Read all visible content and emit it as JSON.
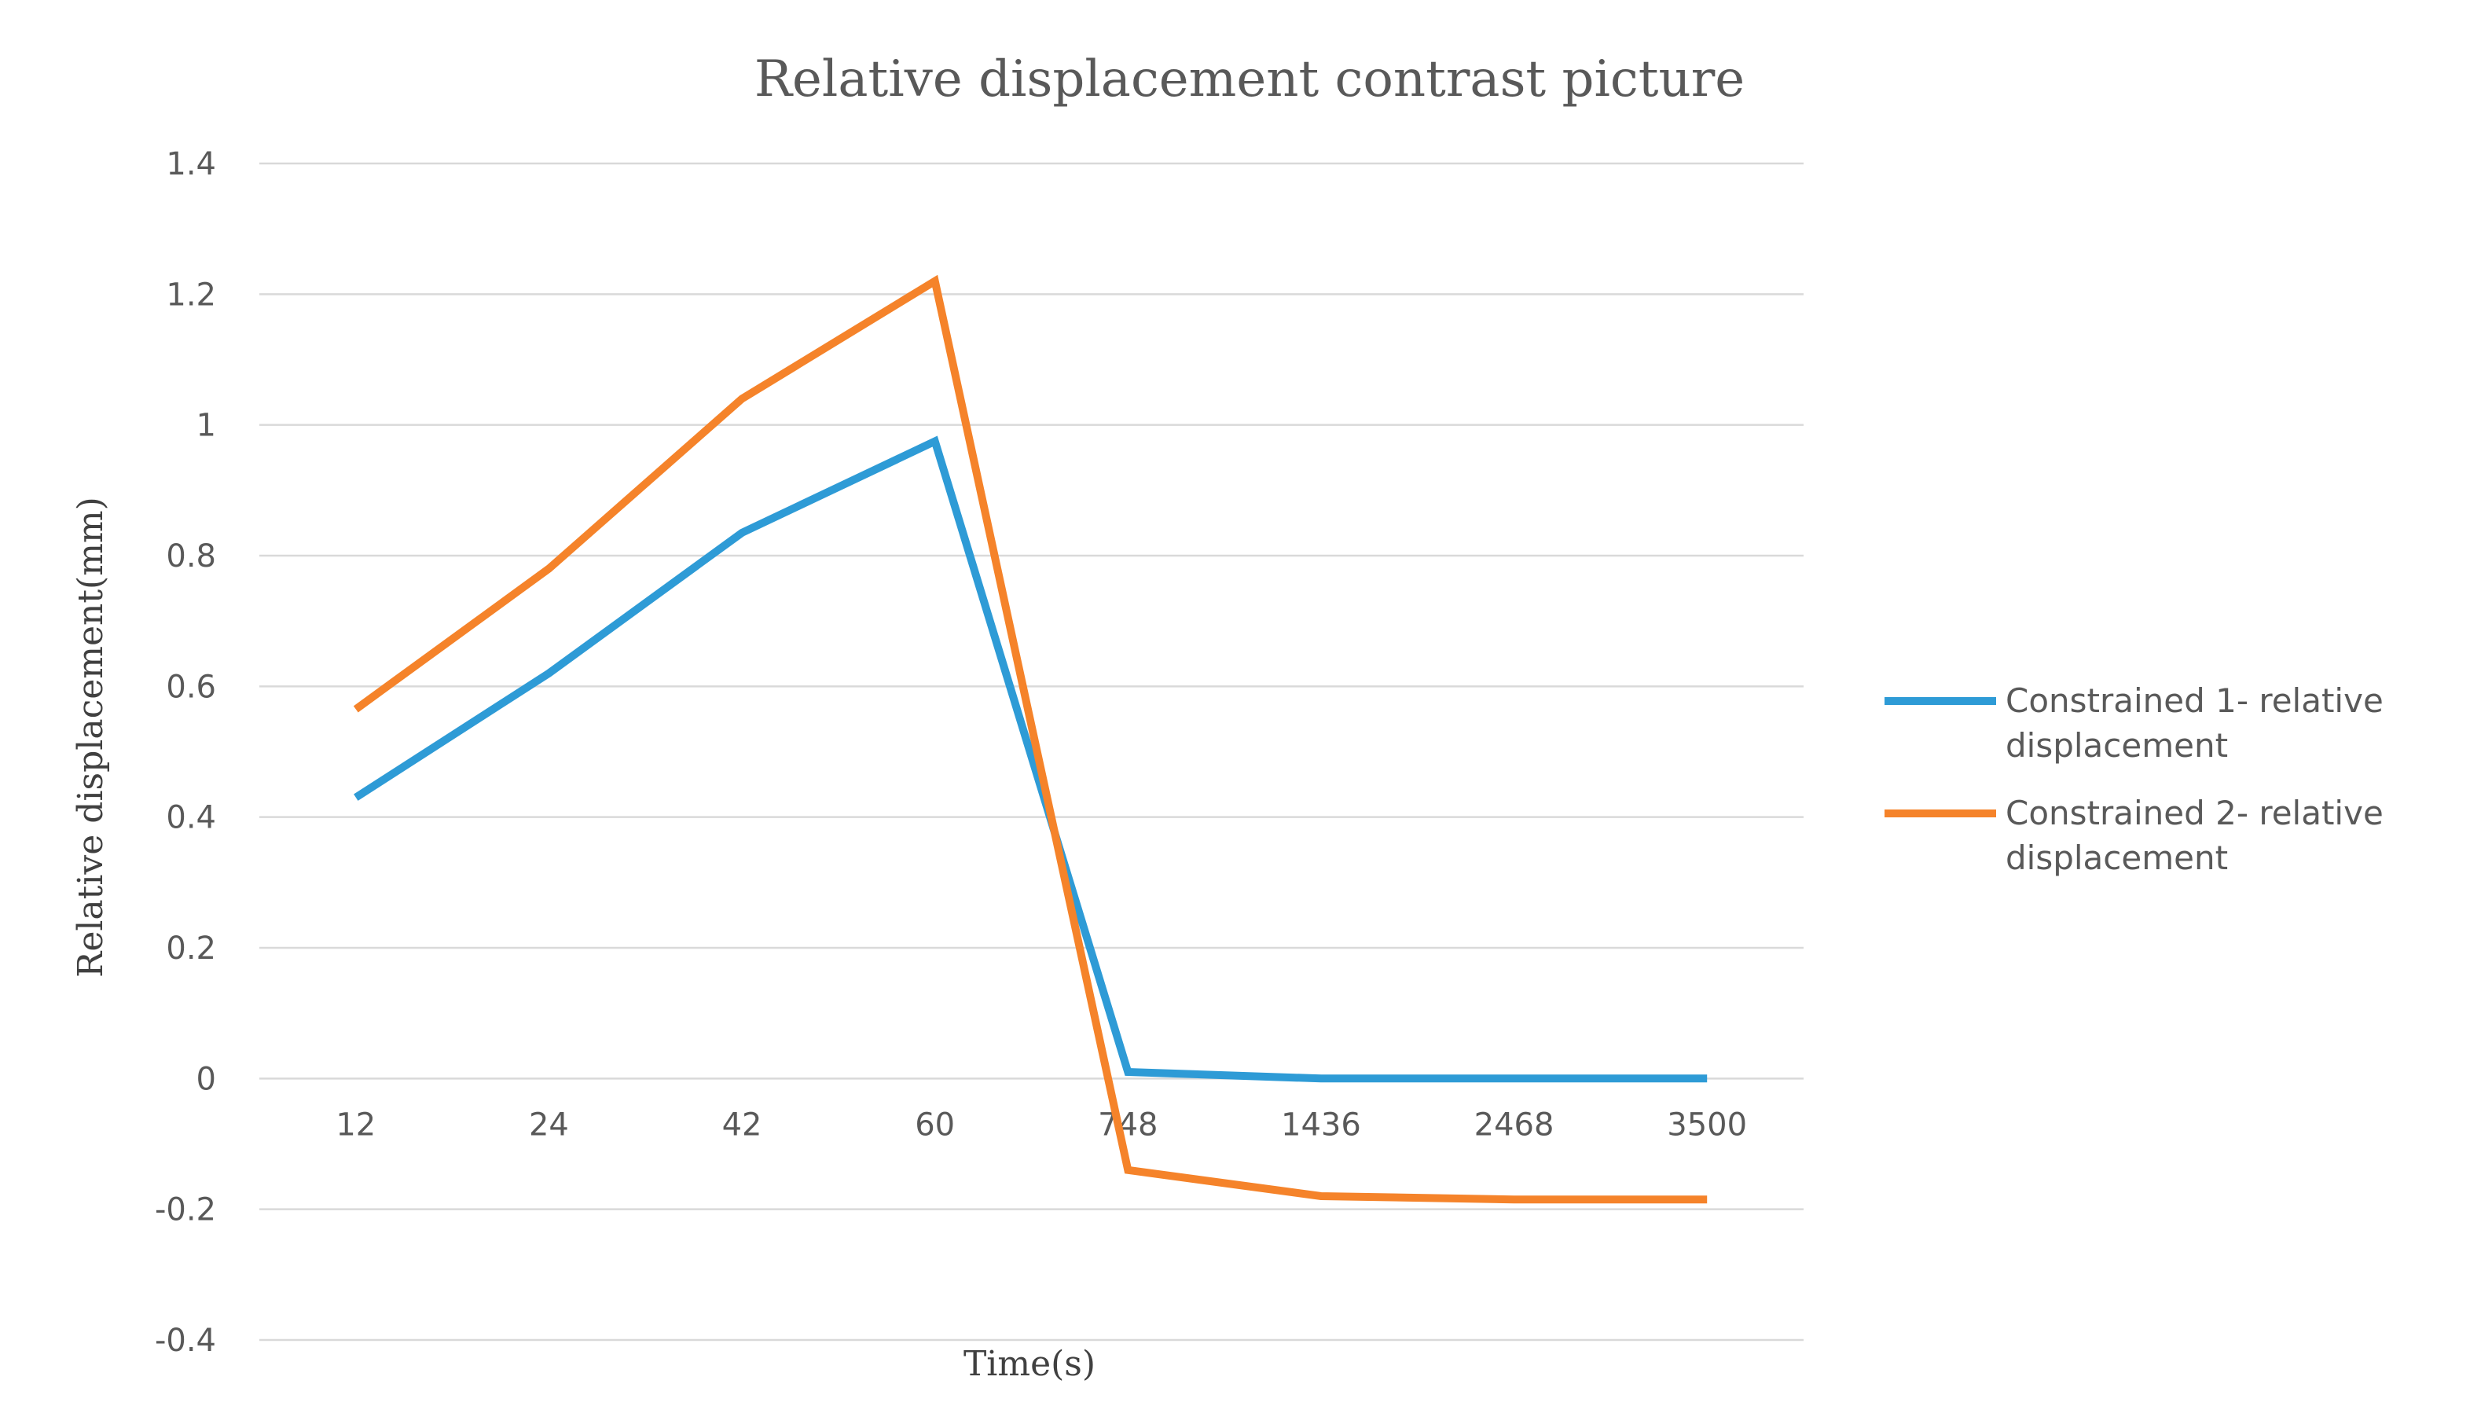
{
  "chart_data": {
    "type": "line",
    "title": "Relative displacement contrast picture",
    "xlabel": "Time(s)",
    "ylabel": "Relative displacement(mm)",
    "categories": [
      "12",
      "24",
      "42",
      "60",
      "748",
      "1436",
      "2468",
      "3500"
    ],
    "ylim": [
      -0.4,
      1.4
    ],
    "yticks": [
      "-0.4",
      "-0.2",
      "0",
      "0.2",
      "0.4",
      "0.6",
      "0.8",
      "1",
      "1.2",
      "1.4"
    ],
    "grid": true,
    "legend_position": "right",
    "series": [
      {
        "name_lines": [
          "Constrained 1- relative",
          "displacement"
        ],
        "color": "#2e9bd6",
        "values": [
          0.43,
          0.62,
          0.835,
          0.975,
          0.01,
          0.0,
          0.0,
          0.0
        ]
      },
      {
        "name_lines": [
          "Constrained 2- relative",
          "displacement"
        ],
        "color": "#f5832a",
        "values": [
          0.565,
          0.78,
          1.04,
          1.22,
          -0.14,
          -0.18,
          -0.185,
          -0.185
        ]
      }
    ]
  }
}
